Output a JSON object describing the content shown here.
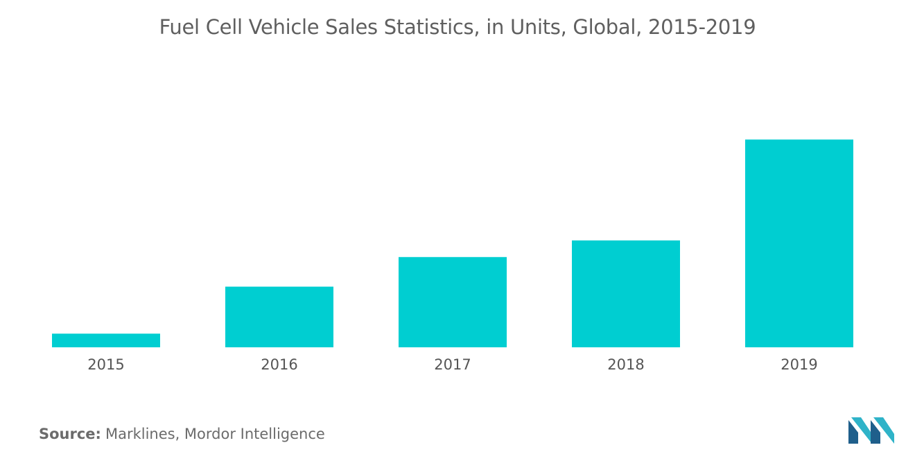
{
  "chart_data": {
    "type": "bar",
    "title": "Fuel Cell Vehicle Sales Statistics, in Units, Global, 2015-2019",
    "categories": [
      "2015",
      "2016",
      "2017",
      "2018",
      "2019"
    ],
    "values": [
      900,
      4000,
      5950,
      7050,
      13700
    ],
    "xlabel": "",
    "ylabel": "",
    "ylim": [
      0,
      16000
    ],
    "grid": false,
    "legend": "none",
    "bar_color": "#00ced1"
  },
  "source": {
    "label": "Source:",
    "text": "Marklines, Mordor Intelligence"
  },
  "logo": {
    "name": "mordor-intelligence-logo",
    "colors": [
      "#1f5f8b",
      "#2fb3c8"
    ]
  }
}
